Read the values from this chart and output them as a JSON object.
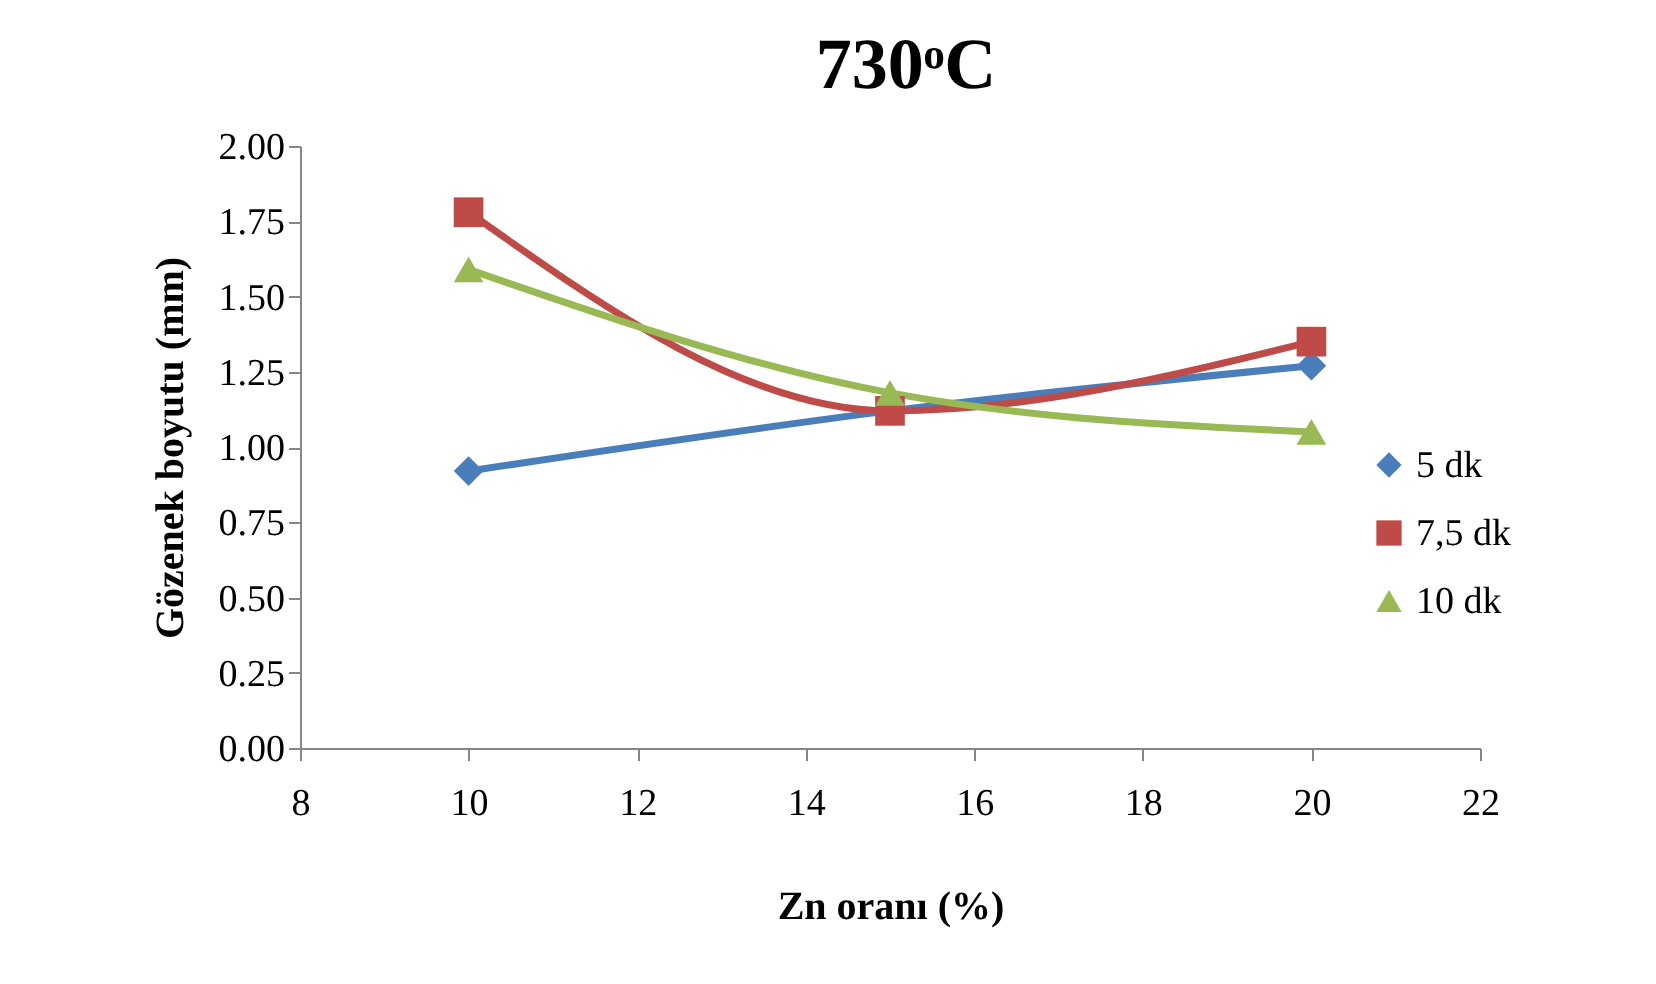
{
  "chart_data": {
    "type": "line",
    "title": "730ᵒC",
    "xlabel": "Zn oranı (%)",
    "ylabel": "Gözenek boyutu (mm)",
    "x": [
      10,
      15,
      20
    ],
    "series": [
      {
        "name": "5 dk",
        "color": "#4a7ebb",
        "marker": "diamond",
        "values": [
          0.92,
          1.12,
          1.27
        ]
      },
      {
        "name": "7,5 dk",
        "color": "#be4b48",
        "marker": "square",
        "values": [
          1.78,
          1.12,
          1.35
        ]
      },
      {
        "name": "10 dk",
        "color": "#98b954",
        "marker": "triangle",
        "values": [
          1.59,
          1.18,
          1.05
        ]
      }
    ],
    "xlim": [
      8,
      22
    ],
    "xticks": [
      8,
      10,
      12,
      14,
      16,
      18,
      20,
      22
    ],
    "ylim": [
      0,
      2
    ],
    "yticks": [
      {
        "value": 0,
        "label": "0.00"
      },
      {
        "value": 0.25,
        "label": "0.25"
      },
      {
        "value": 0.5,
        "label": "0.50"
      },
      {
        "value": 0.75,
        "label": "0.75"
      },
      {
        "value": 1,
        "label": "1.00"
      },
      {
        "value": 1.25,
        "label": "1.25"
      },
      {
        "value": 1.5,
        "label": "1.50"
      },
      {
        "value": 1.75,
        "label": "1.75"
      },
      {
        "value": 2,
        "label": "2.00"
      }
    ],
    "grid": false,
    "legend": "right",
    "line_style": "solid"
  }
}
